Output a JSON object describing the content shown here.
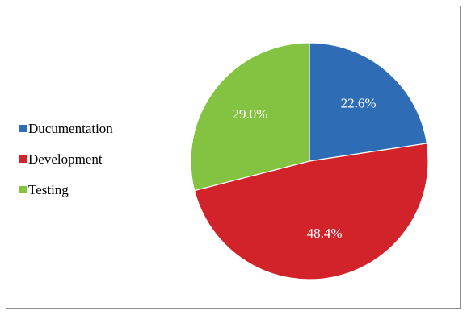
{
  "chart_data": {
    "type": "pie",
    "title": "",
    "categories": [
      "Ducumentation",
      "Development",
      "Testing"
    ],
    "values": [
      22.6,
      48.4,
      29.0
    ],
    "labels": [
      "22.6%",
      "48.4%",
      "29.0%"
    ],
    "colors": [
      "#2e6db5",
      "#d2232a",
      "#83c341"
    ],
    "legend": "left",
    "start_angle": "top, clockwise"
  }
}
